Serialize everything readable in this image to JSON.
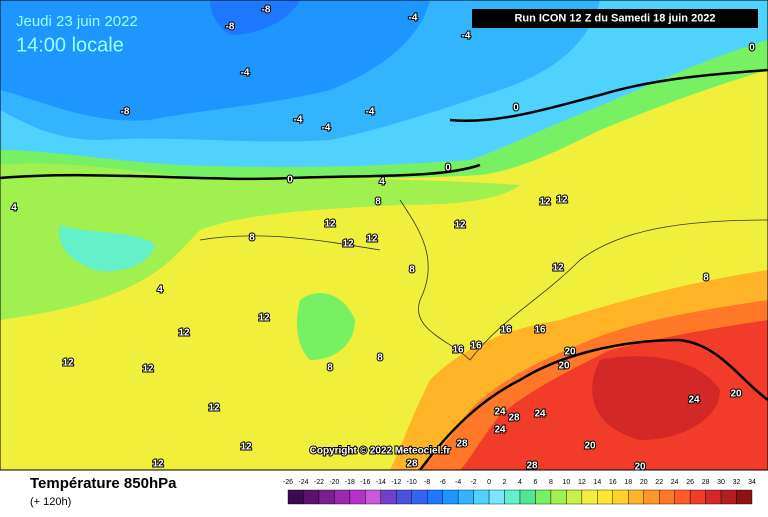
{
  "header": {
    "date": "Jeudi 23 juin 2022",
    "time": "14:00 locale",
    "run": "Run ICON 12 Z du Samedi 18 juin 2022",
    "copyright": "Copyright © 2022 Meteociel.fr"
  },
  "footer": {
    "title": "Température 850hPa",
    "lead": "(+ 120h)"
  },
  "colorbar": {
    "ticks": [
      -26,
      -24,
      -22,
      -20,
      -18,
      -16,
      -14,
      -12,
      -10,
      -8,
      -6,
      -4,
      -2,
      0,
      2,
      4,
      6,
      8,
      10,
      12,
      14,
      16,
      18,
      20,
      22,
      24,
      26,
      28,
      30,
      32,
      34
    ],
    "colors": [
      "#3c0a50",
      "#5a1470",
      "#7a1e90",
      "#9a28b0",
      "#b432c8",
      "#c85adc",
      "#7040c8",
      "#4b50dc",
      "#3264f0",
      "#1e78ff",
      "#1e96ff",
      "#32b4ff",
      "#50d2ff",
      "#78e6ff",
      "#64f0c8",
      "#50e696",
      "#78f064",
      "#a0f050",
      "#c8f046",
      "#f0f03c",
      "#ffe632",
      "#ffd228",
      "#ffb428",
      "#ff9628",
      "#ff7828",
      "#ff5a28",
      "#f03c28",
      "#d22828",
      "#b41e1e",
      "#8c1414"
    ]
  },
  "map": {
    "labels": [
      "-8",
      "-8",
      "-4",
      "-4",
      "-4",
      "-8",
      "-4",
      "-4",
      "-4",
      "0",
      "0",
      "0",
      "0",
      "4",
      "4",
      "4",
      "8",
      "8",
      "8",
      "8",
      "8",
      "8",
      "12",
      "12",
      "12",
      "12",
      "12",
      "12",
      "12",
      "12",
      "12",
      "12",
      "12",
      "12",
      "12",
      "12",
      "16",
      "16",
      "16",
      "16",
      "20",
      "20",
      "20",
      "20",
      "24",
      "24",
      "24",
      "24",
      "28",
      "28",
      "28",
      "28",
      "20"
    ]
  }
}
